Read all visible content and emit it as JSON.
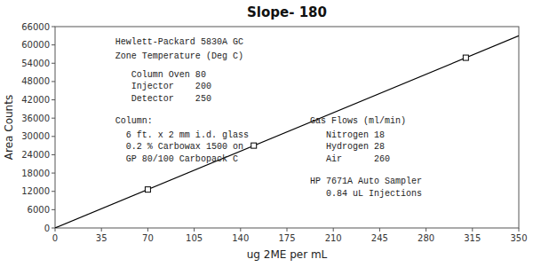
{
  "chart_data": {
    "type": "scatter",
    "title": "Slope- 180",
    "x_label": "ug 2ME per mL",
    "y_label": "Area Counts",
    "xlim": [
      0,
      350
    ],
    "ylim": [
      0,
      66000
    ],
    "xticks": [
      0,
      35,
      70,
      105,
      140,
      175,
      210,
      245,
      280,
      315,
      350
    ],
    "yticks": [
      0,
      6000,
      12000,
      18000,
      24000,
      30000,
      36000,
      42000,
      48000,
      54000,
      60000,
      66000
    ],
    "grid": false,
    "series": [
      {
        "type": "line",
        "color": "#000000",
        "line_style": "solid",
        "x": [
          0,
          350
        ],
        "values": [
          0,
          63000
        ]
      },
      {
        "type": "scatter",
        "color": "#000000",
        "marker": "square",
        "x": [
          70,
          150,
          310
        ],
        "values": [
          12600,
          27000,
          55800
        ]
      }
    ],
    "annotations": [
      "Hewlett-Packard 5830A GC",
      "Zone Temperature (Deg C)",
      "   Column Oven 80",
      "   Injector    200",
      "   Detector    250",
      "Column:",
      "  6 ft. x 2 mm i.d. glass",
      "  0.2 % Carbowax 1500 on",
      "  GP 80/100 Carbopack C",
      "Gas Flows (ml/min)",
      "   Nitrogen 18",
      "   Hydrogen 28",
      "   Air      260",
      "HP 7671A Auto Sampler",
      "   0.84 uL Injections"
    ]
  }
}
